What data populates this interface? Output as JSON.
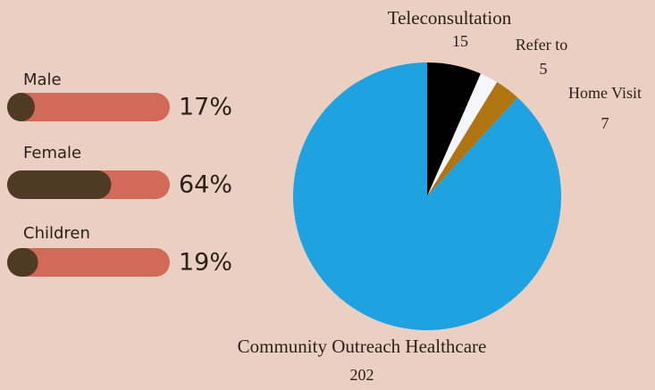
{
  "chart_data": [
    {
      "type": "bar",
      "orientation": "horizontal",
      "categories": [
        "Male",
        "Female",
        "Children"
      ],
      "values": [
        17,
        64,
        19
      ],
      "value_labels": [
        "17%",
        "64%",
        "19%"
      ],
      "xlim": [
        0,
        100
      ],
      "color": "#4f3b25",
      "track_color": "#d16a59"
    },
    {
      "type": "pie",
      "categories": [
        "Teleconsultation",
        "Refer to",
        "Home Visit",
        "Community Outreach Healthcare"
      ],
      "values": [
        15,
        5,
        7,
        202
      ],
      "colors": [
        "#000000",
        "#f4f6fb",
        "#b07511",
        "#1ea2e0"
      ]
    }
  ]
}
